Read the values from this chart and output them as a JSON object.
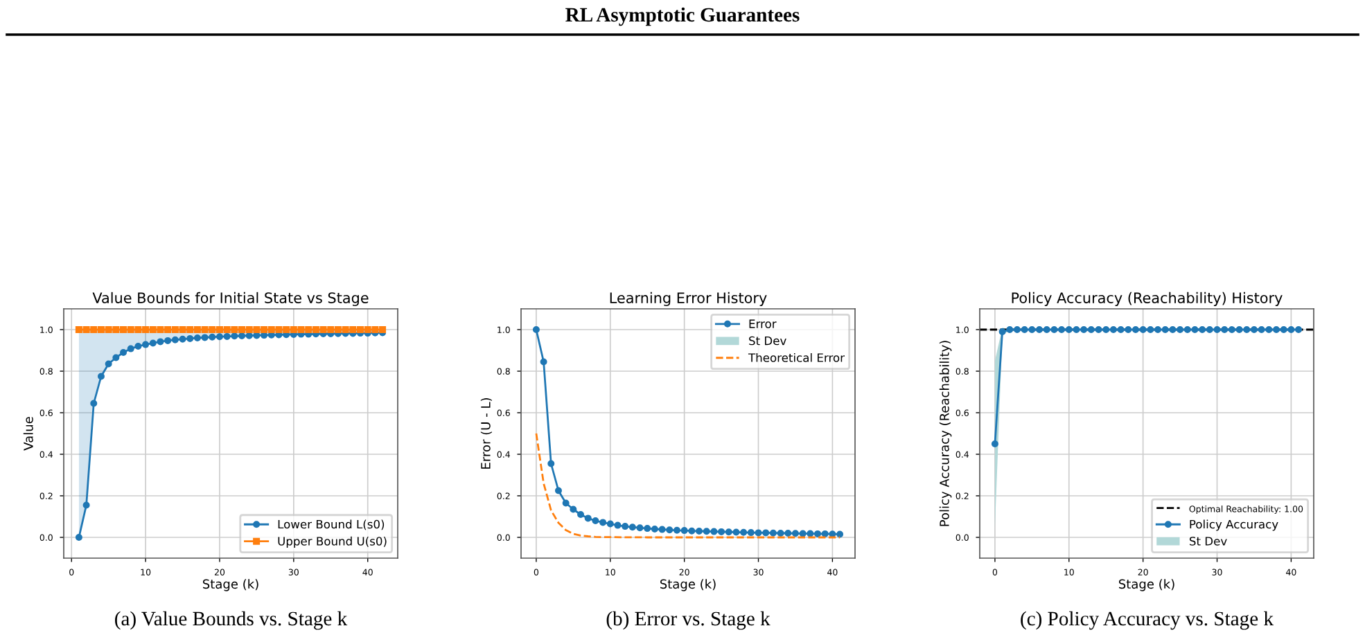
{
  "chart_data": [
    {
      "type": "line",
      "title": "Value Bounds for Initial State vs Stage",
      "xlabel": "Stage (k)",
      "ylabel": "Value",
      "annotations": [
        "RL Asymptotic Guarantees",
        "(a) Value Bounds vs. Stage k"
      ],
      "x": [
        1,
        2,
        3,
        4,
        5,
        6,
        7,
        8,
        9,
        10,
        11,
        12,
        13,
        14,
        15,
        16,
        17,
        18,
        19,
        20,
        21,
        22,
        23,
        24,
        25,
        26,
        27,
        28,
        29,
        30,
        31,
        32,
        33,
        34,
        35,
        36,
        37,
        38,
        39,
        40,
        41,
        42
      ],
      "series": [
        {
          "name": "Lower Bound L(s0)",
          "color": "#1f77b4",
          "marker": "circle",
          "values": [
            0,
            0.155,
            0.645,
            0.775,
            0.835,
            0.865,
            0.89,
            0.908,
            0.92,
            0.928,
            0.935,
            0.942,
            0.947,
            0.951,
            0.954,
            0.957,
            0.96,
            0.962,
            0.964,
            0.966,
            0.967,
            0.969,
            0.97,
            0.971,
            0.972,
            0.973,
            0.974,
            0.975,
            0.976,
            0.977,
            0.978,
            0.978,
            0.979,
            0.98,
            0.98,
            0.981,
            0.982,
            0.982,
            0.983,
            0.983,
            0.984,
            0.985
          ],
          "lower": [
            0,
            0.155,
            0.645,
            0.775,
            0.835,
            0.865,
            0.89,
            0.908,
            0.92,
            0.928,
            0.935,
            0.942,
            0.947,
            0.951,
            0.954,
            0.957,
            0.96,
            0.962,
            0.964,
            0.966,
            0.967,
            0.969,
            0.97,
            0.971,
            0.972,
            0.973,
            0.974,
            0.975,
            0.976,
            0.977,
            0.978,
            0.978,
            0.979,
            0.98,
            0.98,
            0.981,
            0.982,
            0.982,
            0.983,
            0.983,
            0.984,
            0.985
          ],
          "upper": [
            1,
            1,
            1,
            1,
            1,
            1,
            1,
            1,
            1,
            1,
            1,
            1,
            1,
            1,
            1,
            1,
            1,
            1,
            1,
            1,
            1,
            1,
            1,
            1,
            1,
            1,
            1,
            1,
            1,
            1,
            1,
            1,
            1,
            1,
            1,
            1,
            1,
            1,
            1,
            1,
            1,
            1
          ]
        },
        {
          "name": "Upper Bound U(s0)",
          "color": "#ff7f0e",
          "marker": "square",
          "values": [
            1,
            1,
            1,
            1,
            1,
            1,
            1,
            1,
            1,
            1,
            1,
            1,
            1,
            1,
            1,
            1,
            1,
            1,
            1,
            1,
            1,
            1,
            1,
            1,
            1,
            1,
            1,
            1,
            1,
            1,
            1,
            1,
            1,
            1,
            1,
            1,
            1,
            1,
            1,
            1,
            1,
            1
          ]
        }
      ],
      "xlim": [
        -1.05,
        44.05
      ],
      "ylim": [
        -0.1,
        1.1
      ],
      "xticks": [
        0,
        10,
        20,
        30,
        40
      ],
      "yticks": [
        {
          "value": 0,
          "label": "0.0"
        },
        {
          "value": 0.2,
          "label": "0.2"
        },
        {
          "value": 0.4,
          "label": "0.4"
        },
        {
          "value": 0.6,
          "label": "0.6"
        },
        {
          "value": 0.8,
          "label": "0.8"
        },
        {
          "value": 1,
          "label": "1.0"
        }
      ],
      "grid": true,
      "legend": "bottom right"
    },
    {
      "type": "line",
      "title": "Learning Error History",
      "xlabel": "Stage (k)",
      "ylabel": "Error (U - L)",
      "annotations": [
        "(b) Error vs. Stage k"
      ],
      "x": [
        0,
        1,
        2,
        3,
        4,
        5,
        6,
        7,
        8,
        9,
        10,
        11,
        12,
        13,
        14,
        15,
        16,
        17,
        18,
        19,
        20,
        21,
        22,
        23,
        24,
        25,
        26,
        27,
        28,
        29,
        30,
        31,
        32,
        33,
        34,
        35,
        36,
        37,
        38,
        39,
        40,
        41
      ],
      "series": [
        {
          "name": "Error",
          "color": "#1f77b4",
          "marker": "circle",
          "values": [
            1,
            0.845,
            0.355,
            0.225,
            0.165,
            0.135,
            0.11,
            0.092,
            0.08,
            0.072,
            0.065,
            0.058,
            0.053,
            0.049,
            0.046,
            0.043,
            0.04,
            0.038,
            0.036,
            0.034,
            0.033,
            0.031,
            0.03,
            0.029,
            0.028,
            0.027,
            0.026,
            0.025,
            0.024,
            0.023,
            0.022,
            0.022,
            0.021,
            0.02,
            0.02,
            0.019,
            0.018,
            0.018,
            0.017,
            0.017,
            0.016,
            0.015
          ]
        },
        {
          "name": "St Dev",
          "type": "area",
          "color": "#b2d8d8",
          "values": [
            null,
            null,
            null,
            null,
            null,
            null,
            null,
            null,
            null,
            null,
            null,
            null,
            null,
            null,
            null,
            null,
            null,
            null,
            null,
            null,
            null,
            null,
            null,
            null,
            null,
            null,
            null,
            null,
            null,
            null,
            null,
            null,
            null,
            null,
            null,
            null,
            null,
            null,
            null,
            null,
            null,
            null
          ]
        },
        {
          "name": "Theoretical Error",
          "color": "#ff7f0e",
          "marker": "none",
          "line_style": "dashed",
          "x": [
            0,
            1,
            2,
            3,
            4,
            5,
            6,
            7,
            8,
            10,
            15,
            20,
            30,
            41
          ],
          "values": [
            0.5,
            0.26,
            0.13,
            0.07,
            0.035,
            0.017,
            0.009,
            0.005,
            0.002,
            0.001,
            0,
            0,
            0,
            0
          ]
        }
      ],
      "xlim": [
        -2.05,
        43.05
      ],
      "ylim": [
        -0.1,
        1.1
      ],
      "xticks": [
        0,
        10,
        20,
        30,
        40
      ],
      "yticks": [
        {
          "value": 0,
          "label": "0.0"
        },
        {
          "value": 0.2,
          "label": "0.2"
        },
        {
          "value": 0.4,
          "label": "0.4"
        },
        {
          "value": 0.6,
          "label": "0.6"
        },
        {
          "value": 0.8,
          "label": "0.8"
        },
        {
          "value": 1,
          "label": "1.0"
        }
      ],
      "grid": true,
      "legend": "top right"
    },
    {
      "type": "line",
      "title": "Policy Accuracy (Reachability) History",
      "xlabel": "Stage (k)",
      "ylabel": "Policy Accuracy (Reachability)",
      "annotations": [
        "(c) Policy Accuracy vs. Stage k"
      ],
      "x": [
        0,
        1,
        2,
        3,
        4,
        5,
        6,
        7,
        8,
        9,
        10,
        11,
        12,
        13,
        14,
        15,
        16,
        17,
        18,
        19,
        20,
        21,
        22,
        23,
        24,
        25,
        26,
        27,
        28,
        29,
        30,
        31,
        32,
        33,
        34,
        35,
        36,
        37,
        38,
        39,
        40,
        41
      ],
      "series": [
        {
          "name": "Policy Accuracy",
          "color": "#1f77b4",
          "marker": "circle",
          "values": [
            0.45,
            0.99,
            1,
            1,
            1,
            1,
            1,
            1,
            1,
            1,
            1,
            1,
            1,
            1,
            1,
            1,
            1,
            1,
            1,
            1,
            1,
            1,
            1,
            1,
            1,
            1,
            1,
            1,
            1,
            1,
            1,
            1,
            1,
            1,
            1,
            1,
            1,
            1,
            1,
            1,
            1,
            1
          ],
          "lower": [
            0.05,
            0.97,
            1,
            1,
            1,
            1,
            1,
            1,
            1,
            1,
            1,
            1,
            1,
            1,
            1,
            1,
            1,
            1,
            1,
            1,
            1,
            1,
            1,
            1,
            1,
            1,
            1,
            1,
            1,
            1,
            1,
            1,
            1,
            1,
            1,
            1,
            1,
            1,
            1,
            1,
            1,
            1
          ],
          "upper": [
            0.85,
            1.01,
            1,
            1,
            1,
            1,
            1,
            1,
            1,
            1,
            1,
            1,
            1,
            1,
            1,
            1,
            1,
            1,
            1,
            1,
            1,
            1,
            1,
            1,
            1,
            1,
            1,
            1,
            1,
            1,
            1,
            1,
            1,
            1,
            1,
            1,
            1,
            1,
            1,
            1,
            1,
            1
          ]
        },
        {
          "name": "St Dev",
          "type": "area",
          "color": "#b2d8d8",
          "values": [
            null,
            null,
            null,
            null,
            null,
            null,
            null,
            null,
            null,
            null,
            null,
            null,
            null,
            null,
            null,
            null,
            null,
            null,
            null,
            null,
            null,
            null,
            null,
            null,
            null,
            null,
            null,
            null,
            null,
            null,
            null,
            null,
            null,
            null,
            null,
            null,
            null,
            null,
            null,
            null,
            null,
            null
          ]
        }
      ],
      "ref_lines": [
        {
          "axis": "y",
          "value": 1,
          "label": "Optimal Reachability: 1.00",
          "color": "#000000",
          "line_style": "dashed"
        }
      ],
      "xlim": [
        -2.05,
        43.05
      ],
      "ylim": [
        -0.1,
        1.1
      ],
      "xticks": [
        0,
        10,
        20,
        30,
        40
      ],
      "yticks": [
        {
          "value": 0,
          "label": "0.0"
        },
        {
          "value": 0.2,
          "label": "0.2"
        },
        {
          "value": 0.4,
          "label": "0.4"
        },
        {
          "value": 0.6,
          "label": "0.6"
        },
        {
          "value": 0.8,
          "label": "0.8"
        },
        {
          "value": 1,
          "label": "1.0"
        }
      ],
      "grid": true,
      "legend": "bottom right"
    }
  ]
}
